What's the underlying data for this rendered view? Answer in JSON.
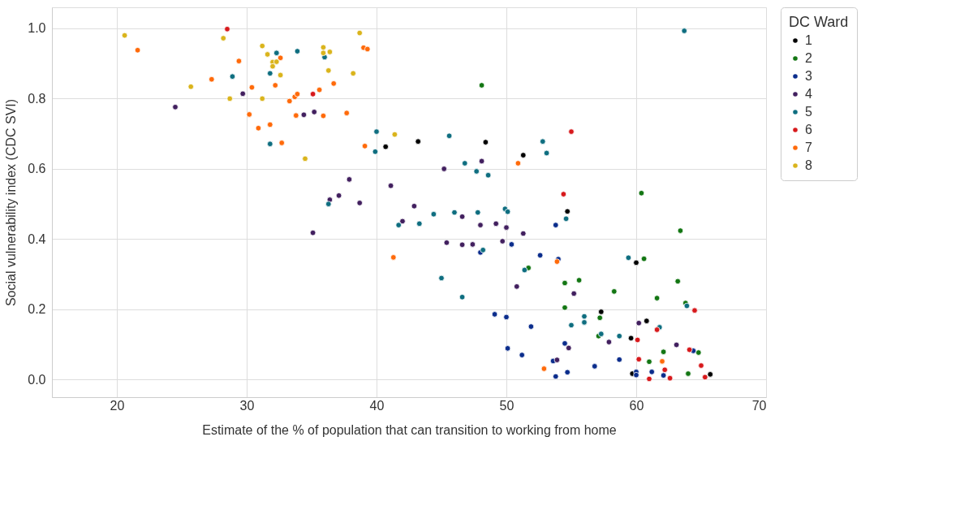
{
  "chart_data": {
    "type": "scatter",
    "xlabel": "Estimate of the % of population that can transition to working from home",
    "ylabel": "Social vulnerability index (CDC SVI)",
    "legend_title": "DC Ward",
    "legend": "right",
    "grid": true,
    "marker": "circle",
    "xlim": [
      15,
      70
    ],
    "xticks": [
      20,
      30,
      40,
      50,
      60,
      70
    ],
    "ylim": [
      -0.05,
      1.06
    ],
    "yticks": [
      {
        "value": 0,
        "label": "0.0"
      },
      0.2,
      0.4,
      0.6,
      0.8,
      {
        "value": 1,
        "label": "1.0"
      }
    ],
    "series": [
      {
        "name": "1",
        "color": "#000000",
        "x": [
          40.7,
          43.2,
          48.4,
          51.3,
          54.7,
          57.3,
          60.0,
          59.6,
          60.8,
          59.7,
          65.7
        ],
        "values": [
          0.663,
          0.678,
          0.676,
          0.639,
          0.479,
          0.193,
          0.333,
          0.118,
          0.167,
          0.017,
          0.015
        ]
      },
      {
        "name": "2",
        "color": "#137613",
        "x": [
          48.1,
          60.4,
          63.4,
          60.6,
          51.7,
          55.6,
          54.5,
          63.2,
          58.3,
          61.6,
          63.8,
          54.5,
          57.2,
          57.1,
          62.1,
          64.8,
          61.0,
          64.0
        ],
        "values": [
          0.838,
          0.531,
          0.424,
          0.344,
          0.318,
          0.283,
          0.275,
          0.28,
          0.251,
          0.232,
          0.218,
          0.205,
          0.176,
          0.124,
          0.079,
          0.077,
          0.051,
          0.017
        ]
      },
      {
        "name": "3",
        "color": "#0b2d8c",
        "x": [
          53.8,
          52.6,
          48.0,
          50.4,
          54.0,
          49.1,
          50.0,
          51.9,
          50.1,
          51.2,
          53.6,
          54.5,
          53.8,
          54.7,
          56.8,
          58.7,
          60.0,
          60.0,
          61.2,
          62.1,
          64.4
        ],
        "values": [
          0.44,
          0.354,
          0.362,
          0.385,
          0.343,
          0.186,
          0.178,
          0.151,
          0.089,
          0.07,
          0.053,
          0.103,
          0.009,
          0.021,
          0.038,
          0.057,
          0.022,
          0.013,
          0.022,
          0.012,
          0.082
        ]
      },
      {
        "name": "4",
        "color": "#42205f",
        "x": [
          24.5,
          29.7,
          34.4,
          35.2,
          35.1,
          36.4,
          37.1,
          37.9,
          38.7,
          41.1,
          42.0,
          42.9,
          45.2,
          45.4,
          46.6,
          46.6,
          47.4,
          48.1,
          48.0,
          49.2,
          49.7,
          50.0,
          51.3,
          50.8,
          55.2,
          53.9,
          54.8,
          57.9,
          60.2,
          63.1
        ],
        "values": [
          0.776,
          0.814,
          0.754,
          0.762,
          0.418,
          0.512,
          0.524,
          0.57,
          0.503,
          0.552,
          0.451,
          0.494,
          0.6,
          0.39,
          0.384,
          0.464,
          0.385,
          0.622,
          0.44,
          0.444,
          0.394,
          0.433,
          0.416,
          0.265,
          0.245,
          0.056,
          0.09,
          0.107,
          0.161,
          0.099
        ]
      },
      {
        "name": "5",
        "color": "#0f6e80",
        "x": [
          28.9,
          31.8,
          31.8,
          32.3,
          33.9,
          36.0,
          36.3,
          40.0,
          39.9,
          41.7,
          43.3,
          44.4,
          45.0,
          45.6,
          46.0,
          46.6,
          46.8,
          47.7,
          47.8,
          48.2,
          48.6,
          49.9,
          50.1,
          51.4,
          52.8,
          53.1,
          54.6,
          55.0,
          56.0,
          56.0,
          57.3,
          58.7,
          59.4,
          61.8,
          63.7,
          63.9
        ],
        "values": [
          0.863,
          0.671,
          0.872,
          0.93,
          0.935,
          0.918,
          0.5,
          0.706,
          0.649,
          0.44,
          0.444,
          0.471,
          0.289,
          0.694,
          0.476,
          0.235,
          0.616,
          0.593,
          0.476,
          0.369,
          0.582,
          0.486,
          0.478,
          0.312,
          0.678,
          0.645,
          0.458,
          0.155,
          0.18,
          0.163,
          0.13,
          0.124,
          0.347,
          0.149,
          0.993,
          0.21
        ]
      },
      {
        "name": "6",
        "color": "#d7191c",
        "x": [
          28.5,
          35.1,
          55.0,
          54.4,
          60.1,
          61.6,
          64.5,
          60.2,
          62.2,
          61.0,
          62.6,
          64.1,
          65.0,
          65.3
        ],
        "values": [
          0.998,
          0.813,
          0.706,
          0.528,
          0.113,
          0.142,
          0.197,
          0.058,
          0.028,
          0.002,
          0.004,
          0.085,
          0.04,
          0.007
        ]
      },
      {
        "name": "7",
        "color": "#ff6a0a",
        "x": [
          21.6,
          27.3,
          29.4,
          30.2,
          30.4,
          30.9,
          31.8,
          32.2,
          32.6,
          32.7,
          33.3,
          33.7,
          33.8,
          33.9,
          35.6,
          35.9,
          36.7,
          37.7,
          39.0,
          39.3,
          39.1,
          41.3,
          50.9,
          52.9,
          53.9,
          62.0
        ],
        "values": [
          0.938,
          0.855,
          0.907,
          0.755,
          0.832,
          0.716,
          0.726,
          0.838,
          0.916,
          0.674,
          0.793,
          0.805,
          0.752,
          0.813,
          0.825,
          0.751,
          0.843,
          0.759,
          0.945,
          0.941,
          0.665,
          0.348,
          0.616,
          0.031,
          0.336,
          0.052
        ]
      },
      {
        "name": "8",
        "color": "#dab41c",
        "x": [
          20.6,
          25.7,
          28.2,
          28.7,
          31.2,
          31.2,
          31.6,
          32.0,
          32.0,
          32.3,
          32.6,
          34.5,
          35.9,
          35.9,
          36.3,
          36.4,
          38.2,
          38.7,
          41.4
        ],
        "values": [
          0.98,
          0.834,
          0.972,
          0.8,
          0.95,
          0.8,
          0.926,
          0.904,
          0.892,
          0.905,
          0.867,
          0.629,
          0.946,
          0.93,
          0.88,
          0.933,
          0.872,
          0.987,
          0.698
        ]
      }
    ]
  }
}
